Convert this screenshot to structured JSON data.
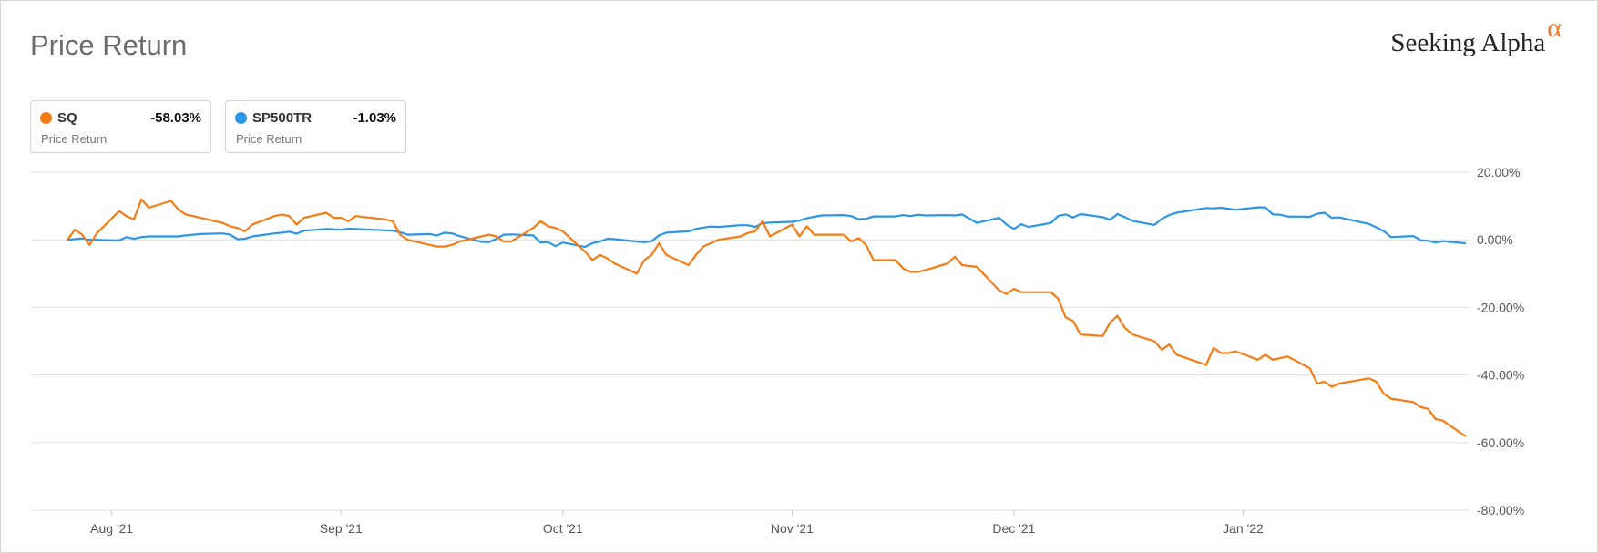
{
  "header": {
    "title": "Price Return",
    "brand": "Seeking Alpha",
    "brand_mark": "α"
  },
  "legend": [
    {
      "symbol": "SQ",
      "value": "-58.03%",
      "label": "Price Return",
      "color": "#f57c14"
    },
    {
      "symbol": "SP500TR",
      "value": "-1.03%",
      "label": "Price Return",
      "color": "#2b96e8"
    }
  ],
  "chart_data": {
    "type": "line",
    "title": "Price Return",
    "ylim": [
      -80,
      20
    ],
    "y_ticks": [
      20,
      0,
      -20,
      -40,
      -60,
      -80
    ],
    "y_tick_labels": [
      "20.00%",
      "0.00%",
      "-20.00%",
      "-40.00%",
      "-60.00%",
      "-80.00%"
    ],
    "x_range": [
      "2021-07-26",
      "2022-01-31"
    ],
    "x_ticks": [
      {
        "date": "2021-08-01",
        "label": "Aug '21"
      },
      {
        "date": "2021-09-01",
        "label": "Sep '21"
      },
      {
        "date": "2021-10-01",
        "label": "Oct '21"
      },
      {
        "date": "2021-11-01",
        "label": "Nov '21"
      },
      {
        "date": "2021-12-01",
        "label": "Dec '21"
      },
      {
        "date": "2022-01-01",
        "label": "Jan '22"
      }
    ],
    "grid": true,
    "series": [
      {
        "name": "SQ",
        "color": "#f57c14",
        "points": [
          [
            "2021-07-26",
            0
          ],
          [
            "2021-07-27",
            3
          ],
          [
            "2021-07-28",
            1.5
          ],
          [
            "2021-07-29",
            -1.5
          ],
          [
            "2021-07-30",
            2
          ],
          [
            "2021-08-02",
            8.5
          ],
          [
            "2021-08-03",
            7
          ],
          [
            "2021-08-04",
            6
          ],
          [
            "2021-08-05",
            12
          ],
          [
            "2021-08-06",
            9.5
          ],
          [
            "2021-08-09",
            11.5
          ],
          [
            "2021-08-10",
            9
          ],
          [
            "2021-08-11",
            7.5
          ],
          [
            "2021-08-12",
            7
          ],
          [
            "2021-08-13",
            6.5
          ],
          [
            "2021-08-16",
            5
          ],
          [
            "2021-08-17",
            4
          ],
          [
            "2021-08-18",
            3.5
          ],
          [
            "2021-08-19",
            2.5
          ],
          [
            "2021-08-20",
            4.5
          ],
          [
            "2021-08-23",
            7
          ],
          [
            "2021-08-24",
            7.5
          ],
          [
            "2021-08-25",
            7
          ],
          [
            "2021-08-26",
            4.5
          ],
          [
            "2021-08-27",
            6.5
          ],
          [
            "2021-08-30",
            8
          ],
          [
            "2021-08-31",
            6.5
          ],
          [
            "2021-09-01",
            6.5
          ],
          [
            "2021-09-02",
            5.5
          ],
          [
            "2021-09-03",
            7
          ],
          [
            "2021-09-07",
            6
          ],
          [
            "2021-09-08",
            5.5
          ],
          [
            "2021-09-09",
            1.5
          ],
          [
            "2021-09-10",
            0
          ],
          [
            "2021-09-13",
            -1.5
          ],
          [
            "2021-09-14",
            -2
          ],
          [
            "2021-09-15",
            -2
          ],
          [
            "2021-09-16",
            -1.5
          ],
          [
            "2021-09-17",
            -0.5
          ],
          [
            "2021-09-20",
            1
          ],
          [
            "2021-09-21",
            1.5
          ],
          [
            "2021-09-22",
            1
          ],
          [
            "2021-09-23",
            -0.5
          ],
          [
            "2021-09-24",
            -0.5
          ],
          [
            "2021-09-27",
            3.5
          ],
          [
            "2021-09-28",
            5.5
          ],
          [
            "2021-09-29",
            4
          ],
          [
            "2021-09-30",
            3.5
          ],
          [
            "2021-10-01",
            2.5
          ],
          [
            "2021-10-04",
            -3.5
          ],
          [
            "2021-10-05",
            -6
          ],
          [
            "2021-10-06",
            -4.5
          ],
          [
            "2021-10-07",
            -5.5
          ],
          [
            "2021-10-08",
            -7
          ],
          [
            "2021-10-11",
            -10
          ],
          [
            "2021-10-12",
            -6
          ],
          [
            "2021-10-13",
            -4.5
          ],
          [
            "2021-10-14",
            -1
          ],
          [
            "2021-10-15",
            -4.5
          ],
          [
            "2021-10-18",
            -7.5
          ],
          [
            "2021-10-19",
            -4.5
          ],
          [
            "2021-10-20",
            -2
          ],
          [
            "2021-10-21",
            -1
          ],
          [
            "2021-10-22",
            0
          ],
          [
            "2021-10-25",
            1
          ],
          [
            "2021-10-26",
            2
          ],
          [
            "2021-10-27",
            2.5
          ],
          [
            "2021-10-28",
            5.5
          ],
          [
            "2021-10-29",
            1
          ],
          [
            "2021-11-01",
            4.5
          ],
          [
            "2021-11-02",
            1
          ],
          [
            "2021-11-03",
            4
          ],
          [
            "2021-11-04",
            1.5
          ],
          [
            "2021-11-05",
            1.5
          ],
          [
            "2021-11-08",
            1.5
          ],
          [
            "2021-11-09",
            -0.5
          ],
          [
            "2021-11-10",
            0.5
          ],
          [
            "2021-11-11",
            -1.5
          ],
          [
            "2021-11-12",
            -6
          ],
          [
            "2021-11-15",
            -6
          ],
          [
            "2021-11-16",
            -8.5
          ],
          [
            "2021-11-17",
            -9.5
          ],
          [
            "2021-11-18",
            -9.5
          ],
          [
            "2021-11-19",
            -9
          ],
          [
            "2021-11-22",
            -7
          ],
          [
            "2021-11-23",
            -5
          ],
          [
            "2021-11-24",
            -7.5
          ],
          [
            "2021-11-26",
            -8
          ],
          [
            "2021-11-29",
            -15
          ],
          [
            "2021-11-30",
            -16
          ],
          [
            "2021-12-01",
            -14.5
          ],
          [
            "2021-12-02",
            -15.5
          ],
          [
            "2021-12-03",
            -15.5
          ],
          [
            "2021-12-06",
            -15.5
          ],
          [
            "2021-12-07",
            -17.5
          ],
          [
            "2021-12-08",
            -23
          ],
          [
            "2021-12-09",
            -24
          ],
          [
            "2021-12-10",
            -28
          ],
          [
            "2021-12-13",
            -28.5
          ],
          [
            "2021-12-14",
            -24.5
          ],
          [
            "2021-12-15",
            -22.5
          ],
          [
            "2021-12-16",
            -26
          ],
          [
            "2021-12-17",
            -28
          ],
          [
            "2021-12-20",
            -30
          ],
          [
            "2021-12-21",
            -32.5
          ],
          [
            "2021-12-22",
            -31
          ],
          [
            "2021-12-23",
            -34
          ],
          [
            "2021-12-27",
            -37
          ],
          [
            "2021-12-28",
            -32
          ],
          [
            "2021-12-29",
            -33.5
          ],
          [
            "2021-12-30",
            -33.5
          ],
          [
            "2021-12-31",
            -33
          ],
          [
            "2022-01-03",
            -35.5
          ],
          [
            "2022-01-04",
            -34
          ],
          [
            "2022-01-05",
            -35.5
          ],
          [
            "2022-01-06",
            -35
          ],
          [
            "2022-01-07",
            -34.5
          ],
          [
            "2022-01-10",
            -38
          ],
          [
            "2022-01-11",
            -42.5
          ],
          [
            "2022-01-12",
            -42
          ],
          [
            "2022-01-13",
            -43.5
          ],
          [
            "2022-01-14",
            -42.5
          ],
          [
            "2022-01-18",
            -41
          ],
          [
            "2022-01-19",
            -42
          ],
          [
            "2022-01-20",
            -45.5
          ],
          [
            "2022-01-21",
            -47
          ],
          [
            "2022-01-24",
            -48
          ],
          [
            "2022-01-25",
            -49.5
          ],
          [
            "2022-01-26",
            -50
          ],
          [
            "2022-01-27",
            -53
          ],
          [
            "2022-01-28",
            -53.5
          ],
          [
            "2022-01-31",
            -58.03
          ]
        ]
      },
      {
        "name": "SP500TR",
        "color": "#2b96e8",
        "points": [
          [
            "2021-07-26",
            0
          ],
          [
            "2021-07-27",
            0.2
          ],
          [
            "2021-07-28",
            0.4
          ],
          [
            "2021-07-29",
            0
          ],
          [
            "2021-07-30",
            0
          ],
          [
            "2021-08-02",
            -0.2
          ],
          [
            "2021-08-03",
            0.8
          ],
          [
            "2021-08-04",
            0.3
          ],
          [
            "2021-08-05",
            0.8
          ],
          [
            "2021-08-06",
            1
          ],
          [
            "2021-08-09",
            1
          ],
          [
            "2021-08-10",
            1
          ],
          [
            "2021-08-11",
            1.3
          ],
          [
            "2021-08-12",
            1.5
          ],
          [
            "2021-08-13",
            1.7
          ],
          [
            "2021-08-16",
            1.9
          ],
          [
            "2021-08-17",
            1.5
          ],
          [
            "2021-08-18",
            0.2
          ],
          [
            "2021-08-19",
            0.3
          ],
          [
            "2021-08-20",
            1
          ],
          [
            "2021-08-23",
            1.9
          ],
          [
            "2021-08-24",
            2.1
          ],
          [
            "2021-08-25",
            2.4
          ],
          [
            "2021-08-26",
            1.8
          ],
          [
            "2021-08-27",
            2.7
          ],
          [
            "2021-08-30",
            3.2
          ],
          [
            "2021-08-31",
            3.1
          ],
          [
            "2021-09-01",
            3
          ],
          [
            "2021-09-02",
            3.3
          ],
          [
            "2021-09-03",
            3.2
          ],
          [
            "2021-09-07",
            2.8
          ],
          [
            "2021-09-08",
            2.7
          ],
          [
            "2021-09-09",
            2.2
          ],
          [
            "2021-09-10",
            1.5
          ],
          [
            "2021-09-13",
            1.7
          ],
          [
            "2021-09-14",
            1.3
          ],
          [
            "2021-09-15",
            2.1
          ],
          [
            "2021-09-16",
            1.9
          ],
          [
            "2021-09-17",
            1.1
          ],
          [
            "2021-09-20",
            -0.6
          ],
          [
            "2021-09-21",
            -0.7
          ],
          [
            "2021-09-22",
            0.3
          ],
          [
            "2021-09-23",
            1.5
          ],
          [
            "2021-09-24",
            1.6
          ],
          [
            "2021-09-27",
            1.3
          ],
          [
            "2021-09-28",
            -0.8
          ],
          [
            "2021-09-29",
            -0.7
          ],
          [
            "2021-09-30",
            -1.9
          ],
          [
            "2021-10-01",
            -0.8
          ],
          [
            "2021-10-04",
            -2.1
          ],
          [
            "2021-10-05",
            -1
          ],
          [
            "2021-10-06",
            -0.5
          ],
          [
            "2021-10-07",
            0.3
          ],
          [
            "2021-10-08",
            0.2
          ],
          [
            "2021-10-11",
            -0.5
          ],
          [
            "2021-10-12",
            -0.7
          ],
          [
            "2021-10-13",
            -0.4
          ],
          [
            "2021-10-14",
            1.3
          ],
          [
            "2021-10-15",
            2.1
          ],
          [
            "2021-10-18",
            2.5
          ],
          [
            "2021-10-19",
            3.2
          ],
          [
            "2021-10-20",
            3.6
          ],
          [
            "2021-10-21",
            3.9
          ],
          [
            "2021-10-22",
            3.8
          ],
          [
            "2021-10-25",
            4.3
          ],
          [
            "2021-10-26",
            4.3
          ],
          [
            "2021-10-27",
            3.8
          ],
          [
            "2021-10-28",
            4.9
          ],
          [
            "2021-10-29",
            5.1
          ],
          [
            "2021-11-01",
            5.3
          ],
          [
            "2021-11-02",
            5.7
          ],
          [
            "2021-11-03",
            6.4
          ],
          [
            "2021-11-04",
            6.8
          ],
          [
            "2021-11-05",
            7.2
          ],
          [
            "2021-11-08",
            7.3
          ],
          [
            "2021-11-09",
            7
          ],
          [
            "2021-11-10",
            6.1
          ],
          [
            "2021-11-11",
            6.2
          ],
          [
            "2021-11-12",
            6.9
          ],
          [
            "2021-11-15",
            6.9
          ],
          [
            "2021-11-16",
            7.3
          ],
          [
            "2021-11-17",
            7
          ],
          [
            "2021-11-18",
            7.4
          ],
          [
            "2021-11-19",
            7.2
          ],
          [
            "2021-11-22",
            7.3
          ],
          [
            "2021-11-23",
            7.2
          ],
          [
            "2021-11-24",
            7.5
          ],
          [
            "2021-11-26",
            5
          ],
          [
            "2021-11-29",
            6.5
          ],
          [
            "2021-11-30",
            4.5
          ],
          [
            "2021-12-01",
            3.2
          ],
          [
            "2021-12-02",
            4.6
          ],
          [
            "2021-12-03",
            3.8
          ],
          [
            "2021-12-06",
            5
          ],
          [
            "2021-12-07",
            7.1
          ],
          [
            "2021-12-08",
            7.5
          ],
          [
            "2021-12-09",
            6.6
          ],
          [
            "2021-12-10",
            7.6
          ],
          [
            "2021-12-13",
            6.7
          ],
          [
            "2021-12-14",
            5.9
          ],
          [
            "2021-12-15",
            7.6
          ],
          [
            "2021-12-16",
            6.7
          ],
          [
            "2021-12-17",
            5.6
          ],
          [
            "2021-12-20",
            4.4
          ],
          [
            "2021-12-21",
            6.2
          ],
          [
            "2021-12-22",
            7.3
          ],
          [
            "2021-12-23",
            8
          ],
          [
            "2021-12-27",
            9.4
          ],
          [
            "2021-12-28",
            9.3
          ],
          [
            "2021-12-29",
            9.5
          ],
          [
            "2021-12-30",
            9.2
          ],
          [
            "2021-12-31",
            8.9
          ],
          [
            "2022-01-03",
            9.6
          ],
          [
            "2022-01-04",
            9.6
          ],
          [
            "2022-01-05",
            7.5
          ],
          [
            "2022-01-06",
            7.4
          ],
          [
            "2022-01-07",
            6.9
          ],
          [
            "2022-01-10",
            6.8
          ],
          [
            "2022-01-11",
            7.7
          ],
          [
            "2022-01-12",
            8
          ],
          [
            "2022-01-13",
            6.5
          ],
          [
            "2022-01-14",
            6.6
          ],
          [
            "2022-01-18",
            4.7
          ],
          [
            "2022-01-19",
            3.7
          ],
          [
            "2022-01-20",
            2.6
          ],
          [
            "2022-01-21",
            0.8
          ],
          [
            "2022-01-24",
            1.1
          ],
          [
            "2022-01-25",
            -0.1
          ],
          [
            "2022-01-26",
            -0.3
          ],
          [
            "2022-01-27",
            -0.8
          ],
          [
            "2022-01-28",
            -0.4
          ],
          [
            "2022-01-31",
            -1.03
          ]
        ]
      }
    ]
  }
}
